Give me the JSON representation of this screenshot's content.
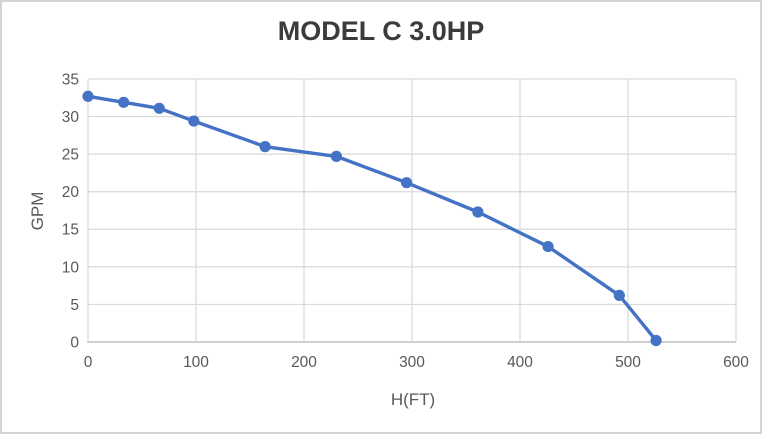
{
  "chart_data": {
    "type": "line",
    "title": "MODEL C 3.0HP",
    "xlabel": "H(FT)",
    "ylabel": "GPM",
    "x": [
      0,
      33,
      66,
      98,
      164,
      230,
      295,
      361,
      426,
      492,
      526
    ],
    "y": [
      32.7,
      31.9,
      31.1,
      29.4,
      26.0,
      24.7,
      21.2,
      17.3,
      12.7,
      6.2,
      0.2
    ],
    "xlim": [
      0,
      600
    ],
    "ylim": [
      0,
      35
    ],
    "xticks": [
      0,
      100,
      200,
      300,
      400,
      500,
      600
    ],
    "yticks": [
      0,
      5,
      10,
      15,
      20,
      25,
      30,
      35
    ],
    "grid": true,
    "legend": false,
    "marker": "circle",
    "colors": {
      "series": "#4472C4",
      "gridline": "#d9d9d9",
      "axis_line": "#bfbfbf",
      "tick_label": "#595959",
      "title_text": "#3b3b3b",
      "frame_border": "#d4d4d4",
      "background": "#ffffff"
    }
  }
}
